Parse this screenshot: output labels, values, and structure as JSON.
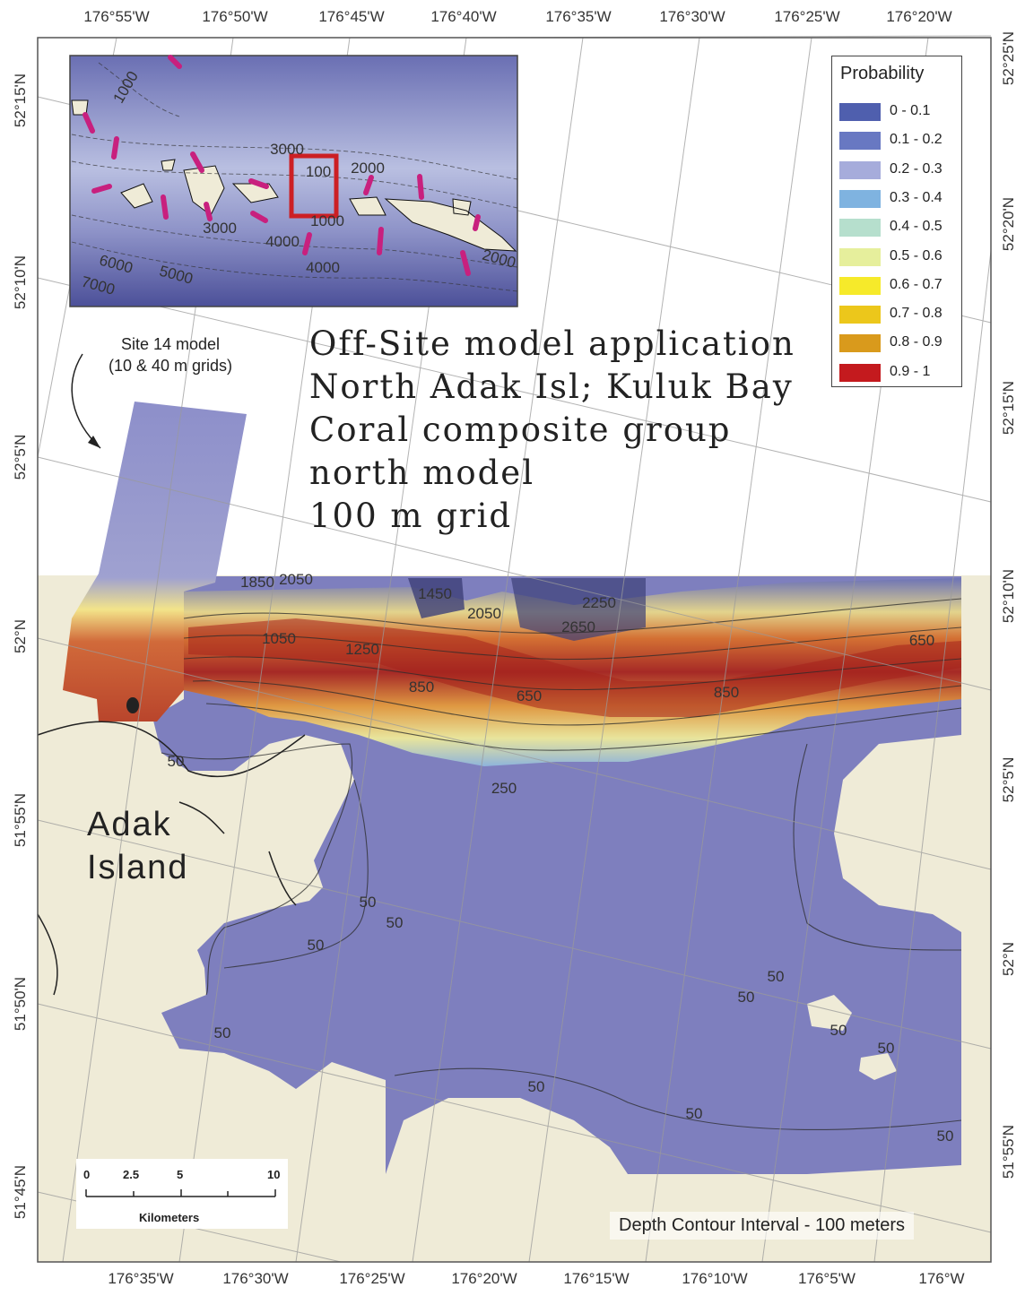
{
  "map": {
    "title_lines": [
      "Off-Site model application",
      "North Adak Isl; Kuluk Bay",
      "Coral composite group",
      "north model",
      "100 m grid"
    ],
    "top_longitudes": [
      "176°55'W",
      "176°50'W",
      "176°45'W",
      "176°40'W",
      "176°35'W",
      "176°30'W",
      "176°25'W",
      "176°20'W"
    ],
    "bottom_longitudes": [
      "176°35'W",
      "176°30'W",
      "176°25'W",
      "176°20'W",
      "176°15'W",
      "176°10'W",
      "176°5'W",
      "176°W"
    ],
    "left_latitudes": [
      "52°15'N",
      "52°10'N",
      "52°5'N",
      "52°N",
      "51°55'N",
      "51°50'N",
      "51°45'N"
    ],
    "right_latitudes": [
      "52°25'N",
      "52°20'N",
      "52°15'N",
      "52°10'N",
      "52°5'N",
      "52°N",
      "51°55'N"
    ],
    "island_label": [
      "Adak",
      "Island"
    ],
    "site_note": [
      "Site 14 model",
      "(10 & 40 m grids)"
    ],
    "contour_note": "Depth Contour Interval - 100 meters",
    "inset_labels": [
      "1000",
      "3000",
      "100",
      "2000",
      "3000",
      "4000",
      "1000",
      "4000",
      "6000",
      "5000",
      "7000",
      "2000"
    ],
    "contour_labels": [
      "50",
      "50",
      "50",
      "50",
      "50",
      "50",
      "50",
      "50",
      "50",
      "50",
      "50",
      "50",
      "250",
      "1050",
      "1250",
      "850",
      "650",
      "1850",
      "2050",
      "2250",
      "2050",
      "2650",
      "1450",
      "850",
      "650"
    ]
  },
  "legend": {
    "title": "Probability",
    "classes": [
      {
        "label": "0 - 0.1",
        "color": "#4f5fae"
      },
      {
        "label": "0.1 - 0.2",
        "color": "#6878c2"
      },
      {
        "label": "0.2 - 0.3",
        "color": "#a6acdb"
      },
      {
        "label": "0.3 - 0.4",
        "color": "#7fb3e0"
      },
      {
        "label": "0.4 - 0.5",
        "color": "#b6dfcd"
      },
      {
        "label": "0.5 - 0.6",
        "color": "#e6ef9c"
      },
      {
        "label": "0.6 - 0.7",
        "color": "#f6ea2a"
      },
      {
        "label": "0.7 - 0.8",
        "color": "#ecc71b"
      },
      {
        "label": "0.8 - 0.9",
        "color": "#d99a1c"
      },
      {
        "label": "0.9 - 1",
        "color": "#c41a1e"
      }
    ]
  },
  "scale_bar": {
    "ticks": [
      "0",
      "2.5",
      "5",
      "10"
    ],
    "unit": "Kilometers"
  },
  "colors": {
    "land": "#efebd7",
    "bathymetry": "#7e7fbe",
    "inset_ocean": "#5e63a8",
    "inset_highlight": "#cc1f24",
    "transect": "#c8207e"
  }
}
